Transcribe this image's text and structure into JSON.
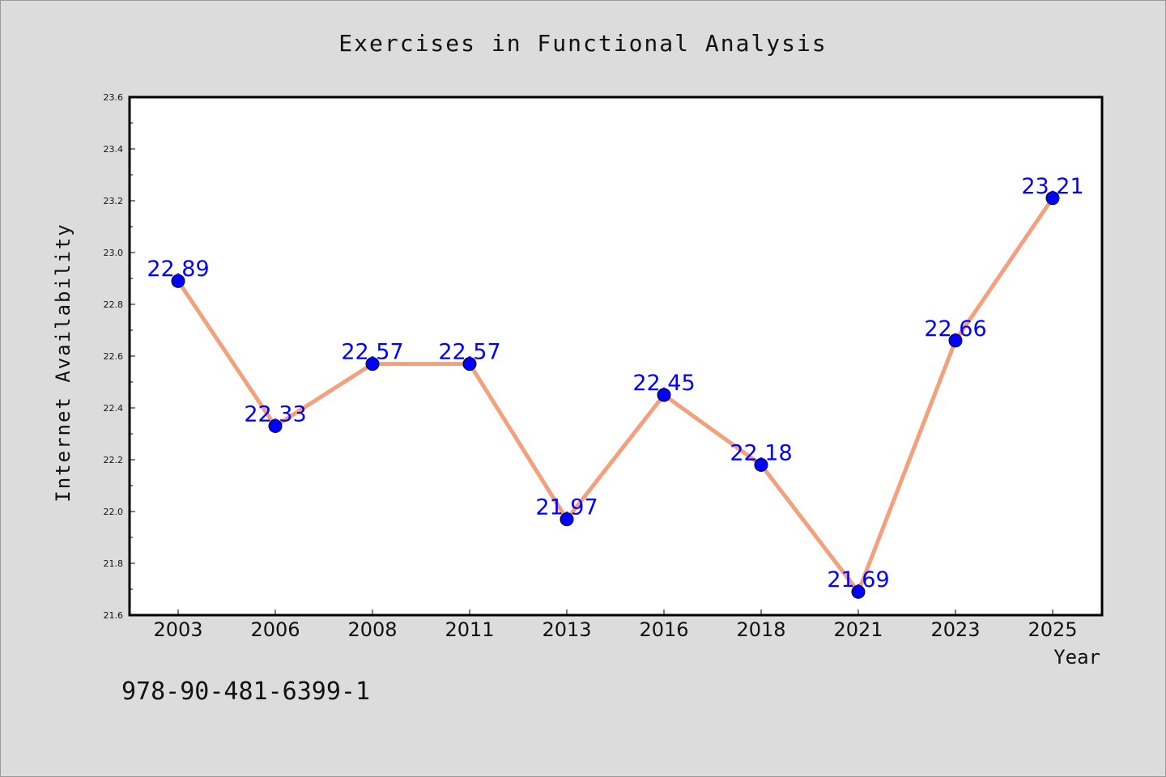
{
  "chart_data": {
    "type": "line",
    "title": "Exercises in Functional Analysis",
    "xlabel": "Year",
    "ylabel": "Internet Availability",
    "categories": [
      "2003",
      "2006",
      "2008",
      "2011",
      "2013",
      "2016",
      "2018",
      "2021",
      "2023",
      "2025"
    ],
    "values": [
      22.89,
      22.33,
      22.57,
      22.57,
      21.97,
      22.45,
      22.18,
      21.69,
      22.66,
      23.21
    ],
    "value_labels": [
      "22.89",
      "22.33",
      "22.57",
      "22.57",
      "21.97",
      "22.45",
      "22.18",
      "21.69",
      "22.66",
      "23.21"
    ],
    "ylim": [
      21.6,
      23.6
    ],
    "yticks": [
      "21.6",
      "21.8",
      "22.0",
      "22.2",
      "22.4",
      "22.6",
      "22.8",
      "23.0",
      "23.2",
      "23.4",
      "23.6"
    ],
    "grid": false,
    "line_color": "#f4a07c",
    "marker_color": "#0000ff",
    "label_color": "#0000ff"
  },
  "footer_text": "978-90-481-6399-1"
}
